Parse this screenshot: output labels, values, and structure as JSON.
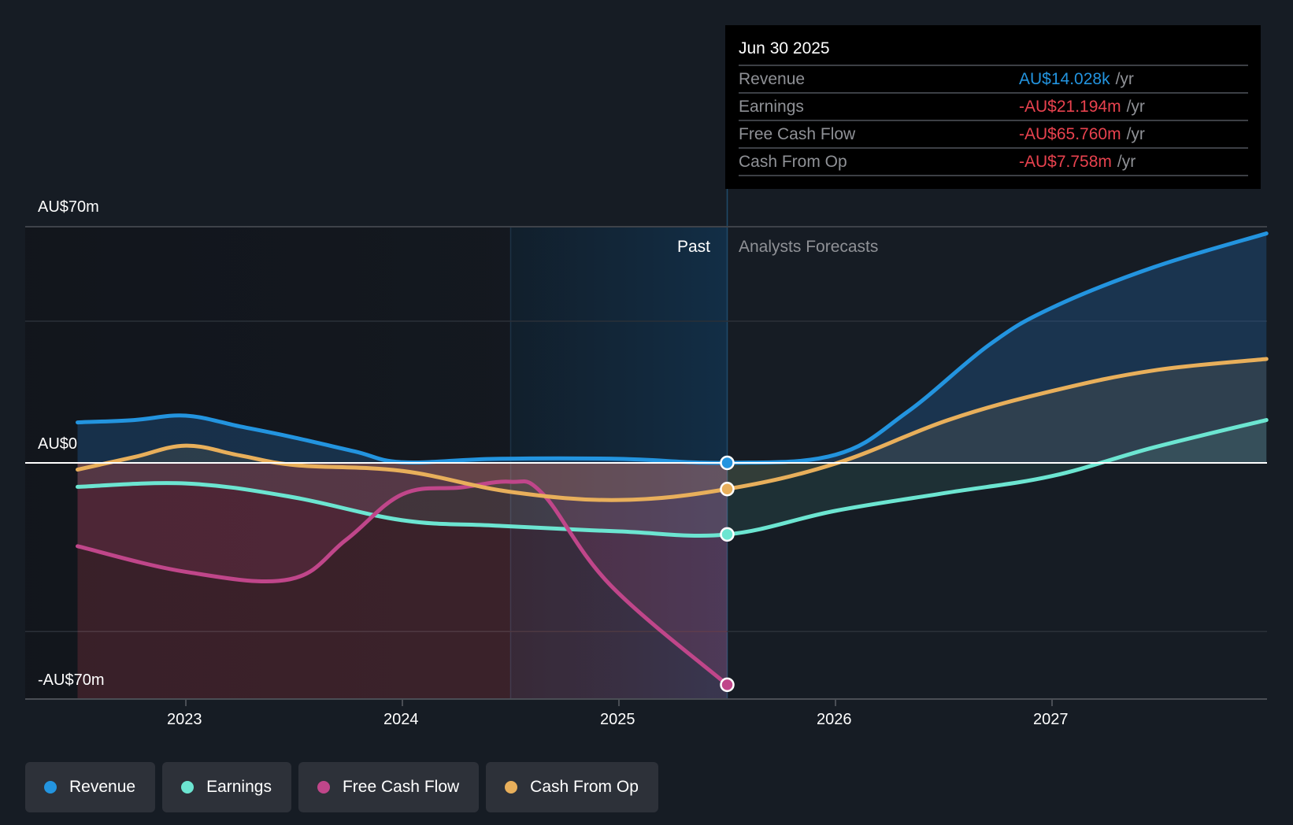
{
  "chart_data": {
    "type": "line",
    "title": "",
    "currency_prefix": "AU$",
    "y_unit": "millions AUD",
    "ylim": [
      -70,
      70
    ],
    "y_ticks": [
      {
        "value": 70,
        "label": "AU$70m"
      },
      {
        "value": 0,
        "label": "AU$0"
      },
      {
        "value": -70,
        "label": "-AU$70m"
      }
    ],
    "y_gridlines": [
      70,
      42,
      0,
      -50,
      -70
    ],
    "xlim": [
      2022.25,
      2028.0
    ],
    "x_ticks": [
      {
        "value": 2023,
        "label": "2023"
      },
      {
        "value": 2024,
        "label": "2024"
      },
      {
        "value": 2025,
        "label": "2025"
      },
      {
        "value": 2026,
        "label": "2026"
      },
      {
        "value": 2027,
        "label": "2027"
      }
    ],
    "past_forecast_divider": 2025.5,
    "highlight_range": [
      2024.5,
      2025.5
    ],
    "period_labels": {
      "past": "Past",
      "forecast": "Analysts Forecasts"
    },
    "legend_position": "bottom-left",
    "series": [
      {
        "name": "Revenue",
        "color": "#2394df",
        "points": [
          [
            2022.5,
            12
          ],
          [
            2022.76,
            12.7
          ],
          [
            2023.0,
            14
          ],
          [
            2023.25,
            10.8
          ],
          [
            2023.48,
            7.8
          ],
          [
            2023.78,
            3.4
          ],
          [
            2024.0,
            0.2
          ],
          [
            2024.43,
            1.2
          ],
          [
            2025.0,
            1.2
          ],
          [
            2025.5,
            0.014
          ],
          [
            2026.0,
            2.4
          ],
          [
            2026.33,
            15
          ],
          [
            2026.71,
            35
          ],
          [
            2027.0,
            46
          ],
          [
            2027.47,
            58
          ],
          [
            2027.99,
            68
          ]
        ]
      },
      {
        "name": "Earnings",
        "color": "#6ce5d1",
        "points": [
          [
            2022.5,
            -7.1
          ],
          [
            2023.0,
            -6.1
          ],
          [
            2023.48,
            -10
          ],
          [
            2024.0,
            -17
          ],
          [
            2024.43,
            -18.6
          ],
          [
            2025.0,
            -20.3
          ],
          [
            2025.5,
            -21.194
          ],
          [
            2026.0,
            -14.2
          ],
          [
            2026.52,
            -8.8
          ],
          [
            2027.0,
            -3.9
          ],
          [
            2027.47,
            4.6
          ],
          [
            2027.99,
            12.7
          ]
        ]
      },
      {
        "name": "Free Cash Flow",
        "color": "#c0468a",
        "points": [
          [
            2022.5,
            -24.7
          ],
          [
            2023.0,
            -32.3
          ],
          [
            2023.48,
            -34.5
          ],
          [
            2023.74,
            -22.8
          ],
          [
            2024.0,
            -9.3
          ],
          [
            2024.27,
            -7.3
          ],
          [
            2024.5,
            -5.6
          ],
          [
            2024.65,
            -9.3
          ],
          [
            2024.96,
            -36.2
          ],
          [
            2025.5,
            -65.76
          ]
        ]
      },
      {
        "name": "Cash From Op",
        "color": "#e8af5b",
        "points": [
          [
            2022.5,
            -2
          ],
          [
            2022.76,
            1.7
          ],
          [
            2023.0,
            5.1
          ],
          [
            2023.25,
            2.2
          ],
          [
            2023.51,
            -0.7
          ],
          [
            2024.0,
            -2.4
          ],
          [
            2024.5,
            -8.6
          ],
          [
            2025.0,
            -11
          ],
          [
            2025.5,
            -7.758
          ],
          [
            2026.0,
            -0.2
          ],
          [
            2026.52,
            12.7
          ],
          [
            2027.0,
            21.3
          ],
          [
            2027.47,
            27.4
          ],
          [
            2027.99,
            30.8
          ]
        ]
      }
    ]
  },
  "tooltip": {
    "date": "Jun 30 2025",
    "rows": [
      {
        "label": "Revenue",
        "value": "AU$14.028k",
        "unit": "/yr",
        "color": "#2394df"
      },
      {
        "label": "Earnings",
        "value": "-AU$21.194m",
        "unit": "/yr",
        "color": "#e8424e"
      },
      {
        "label": "Free Cash Flow",
        "value": "-AU$65.760m",
        "unit": "/yr",
        "color": "#e8424e"
      },
      {
        "label": "Cash From Op",
        "value": "-AU$7.758m",
        "unit": "/yr",
        "color": "#e8424e"
      }
    ]
  },
  "legend": [
    {
      "label": "Revenue",
      "color": "#2394df"
    },
    {
      "label": "Earnings",
      "color": "#6ce5d1"
    },
    {
      "label": "Free Cash Flow",
      "color": "#c0468a"
    },
    {
      "label": "Cash From Op",
      "color": "#e8af5b"
    }
  ]
}
